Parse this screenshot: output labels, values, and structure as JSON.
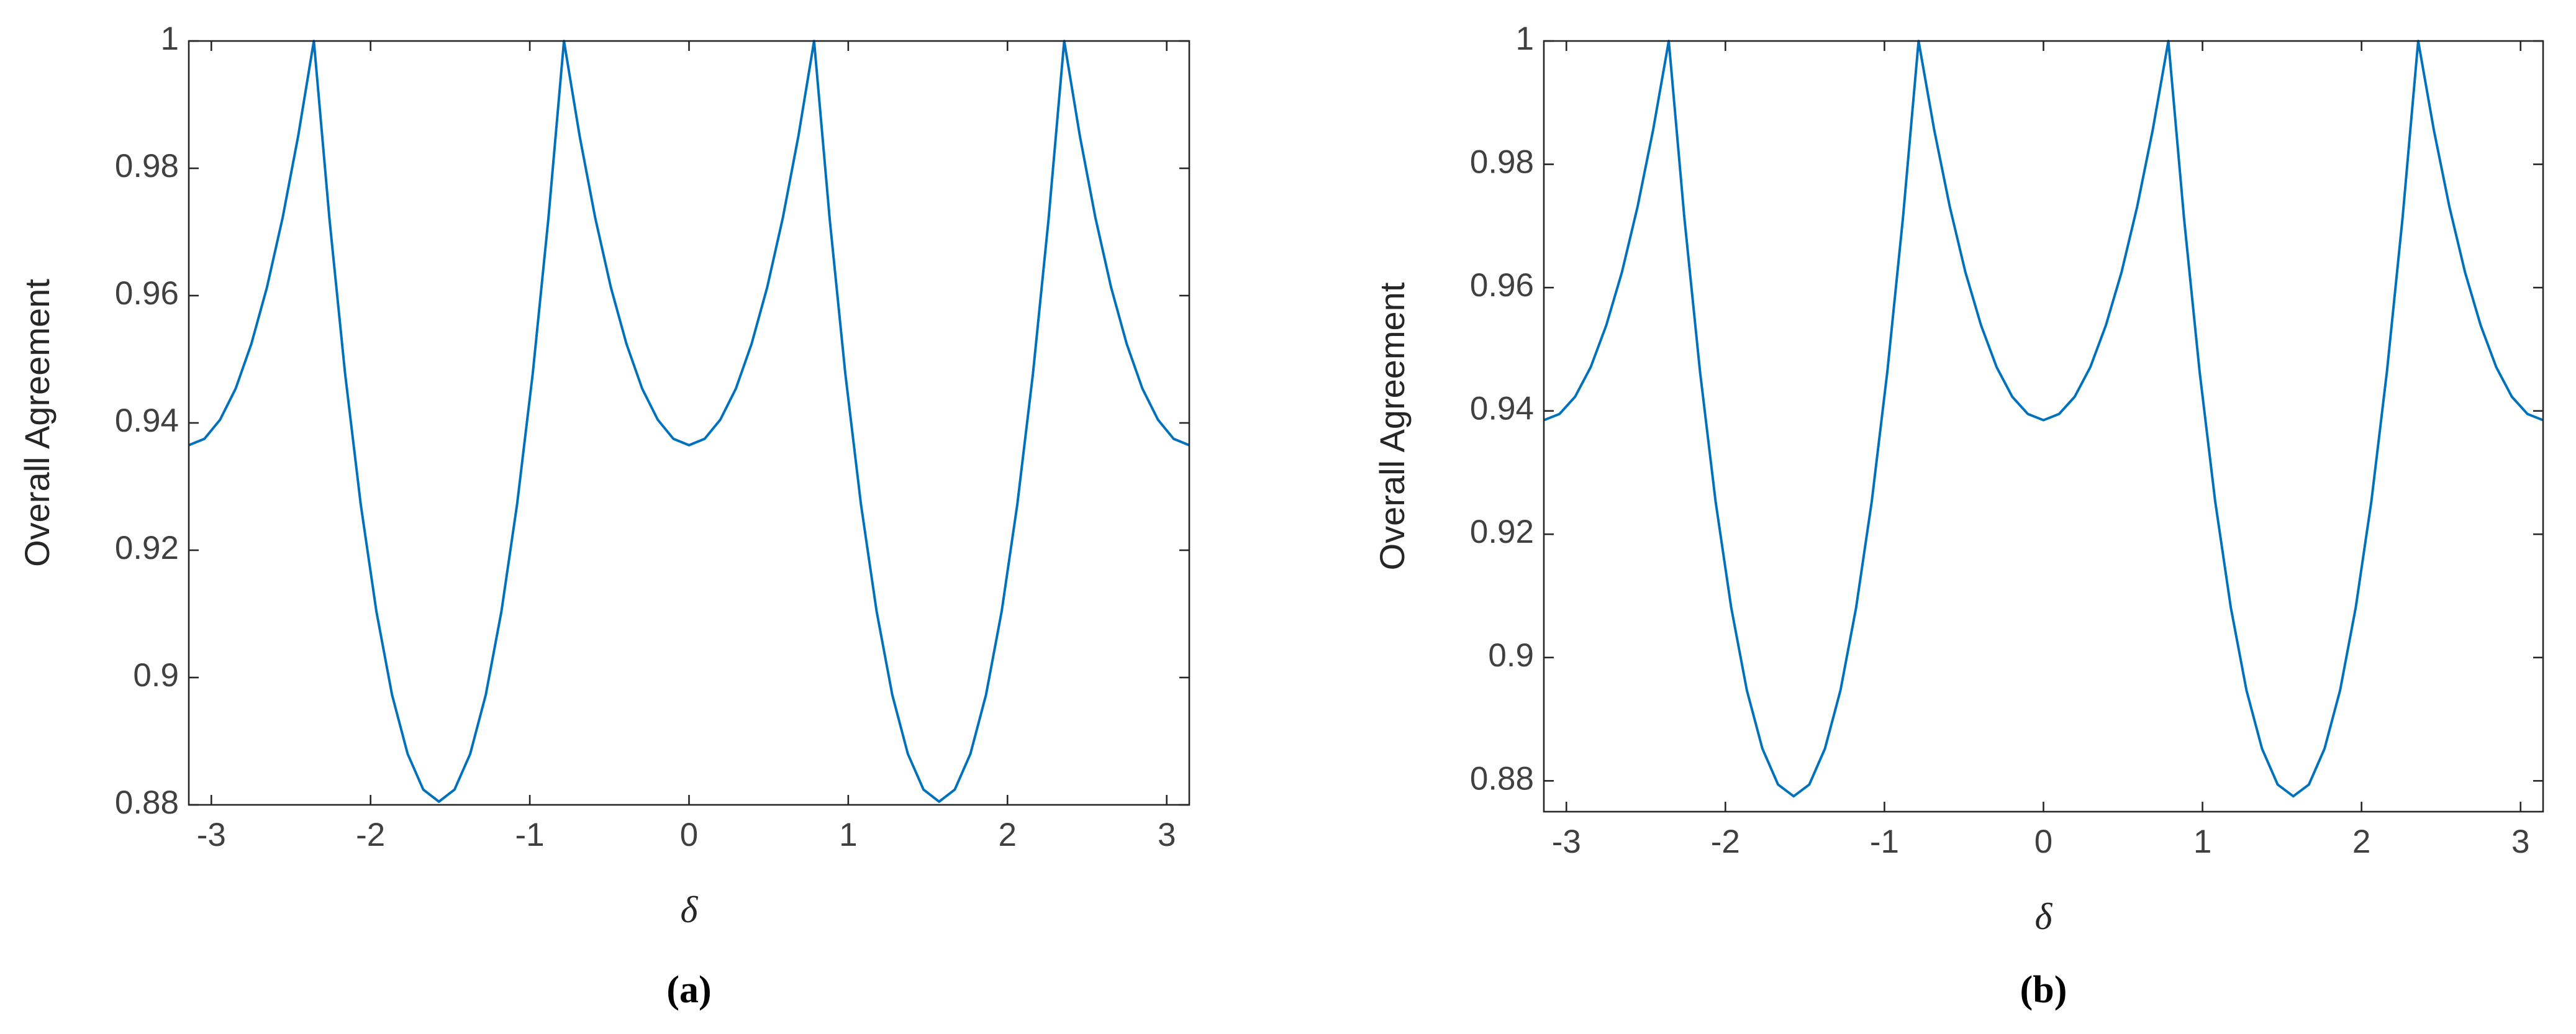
{
  "chart_data": [
    {
      "type": "line",
      "caption": "(a)",
      "xlabel": "δ",
      "ylabel": "Overall Agreement",
      "color": "#0072bd",
      "xlim": [
        -3.1416,
        3.1416
      ],
      "ylim": [
        0.88,
        1
      ],
      "xticks": [
        -3,
        -2,
        -1,
        0,
        1,
        2,
        3
      ],
      "yticks": [
        0.88,
        0.9,
        0.92,
        0.94,
        0.96,
        0.98,
        1
      ],
      "x": [
        -3.1416,
        -3.0434,
        -2.9452,
        -2.8471,
        -2.7489,
        -2.6507,
        -2.5525,
        -2.4544,
        -2.3562,
        -2.258,
        -2.1598,
        -2.0617,
        -1.9635,
        -1.8653,
        -1.7671,
        -1.669,
        -1.5708,
        -1.4726,
        -1.3744,
        -1.2763,
        -1.1781,
        -1.0799,
        -0.9817,
        -0.8836,
        -0.7854,
        -0.6872,
        -0.589,
        -0.4909,
        -0.3927,
        -0.2945,
        -0.1963,
        -0.0982,
        0,
        0.0982,
        0.1963,
        0.2945,
        0.3927,
        0.4909,
        0.589,
        0.6872,
        0.7854,
        0.8836,
        0.9817,
        1.0799,
        1.1781,
        1.2763,
        1.3744,
        1.4726,
        1.5708,
        1.669,
        1.7671,
        1.8653,
        1.9635,
        2.0617,
        2.1598,
        2.258,
        2.3562,
        2.4544,
        2.5525,
        2.6507,
        2.7489,
        2.8471,
        2.9452,
        3.0434,
        3.1416
      ],
      "values": [
        0.9365,
        0.9375,
        0.9405,
        0.9454,
        0.9524,
        0.9613,
        0.9722,
        0.9851,
        1,
        0.972,
        0.9477,
        0.9272,
        0.9104,
        0.8973,
        0.888,
        0.8824,
        0.8805,
        0.8824,
        0.888,
        0.8973,
        0.9104,
        0.9272,
        0.9477,
        0.972,
        1,
        0.9851,
        0.9722,
        0.9613,
        0.9524,
        0.9454,
        0.9405,
        0.9375,
        0.9365,
        0.9375,
        0.9405,
        0.9454,
        0.9524,
        0.9613,
        0.9722,
        0.9851,
        1,
        0.972,
        0.9477,
        0.9272,
        0.9104,
        0.8973,
        0.888,
        0.8824,
        0.8805,
        0.8824,
        0.888,
        0.8973,
        0.9104,
        0.9272,
        0.9477,
        0.972,
        1,
        0.9851,
        0.9722,
        0.9613,
        0.9524,
        0.9454,
        0.9405,
        0.9375,
        0.9365
      ]
    },
    {
      "type": "line",
      "caption": "(b)",
      "xlabel": "δ",
      "ylabel": "Overall Agreement",
      "color": "#0072bd",
      "xlim": [
        -3.1416,
        3.1416
      ],
      "ylim": [
        0.875,
        1
      ],
      "xticks": [
        -3,
        -2,
        -1,
        0,
        1,
        2,
        3
      ],
      "yticks": [
        0.88,
        0.9,
        0.92,
        0.94,
        0.96,
        0.98,
        1
      ],
      "x": [
        -3.1416,
        -3.0434,
        -2.9452,
        -2.8471,
        -2.7489,
        -2.6507,
        -2.5525,
        -2.4544,
        -2.3562,
        -2.258,
        -2.1598,
        -2.0617,
        -1.9635,
        -1.8653,
        -1.7671,
        -1.669,
        -1.5708,
        -1.4726,
        -1.3744,
        -1.2763,
        -1.1781,
        -1.0799,
        -0.9817,
        -0.8836,
        -0.7854,
        -0.6872,
        -0.589,
        -0.4909,
        -0.3927,
        -0.2945,
        -0.1963,
        -0.0982,
        0,
        0.0982,
        0.1963,
        0.2945,
        0.3927,
        0.4909,
        0.589,
        0.6872,
        0.7854,
        0.8836,
        0.9817,
        1.0799,
        1.1781,
        1.2763,
        1.3744,
        1.4726,
        1.5708,
        1.669,
        1.7671,
        1.8653,
        1.9635,
        2.0617,
        2.1598,
        2.258,
        2.3562,
        2.4544,
        2.5525,
        2.6507,
        2.7489,
        2.8471,
        2.9452,
        3.0434,
        3.1416
      ],
      "values": [
        0.9385,
        0.9395,
        0.9423,
        0.9471,
        0.9539,
        0.9625,
        0.9731,
        0.9856,
        1,
        0.9713,
        0.9464,
        0.9253,
        0.9081,
        0.8947,
        0.8852,
        0.8794,
        0.8775,
        0.8794,
        0.8852,
        0.8947,
        0.9081,
        0.9253,
        0.9464,
        0.9713,
        1,
        0.9856,
        0.9731,
        0.9625,
        0.9539,
        0.9471,
        0.9423,
        0.9395,
        0.9385,
        0.9395,
        0.9423,
        0.9471,
        0.9539,
        0.9625,
        0.9731,
        0.9856,
        1,
        0.9713,
        0.9464,
        0.9253,
        0.9081,
        0.8947,
        0.8852,
        0.8794,
        0.8775,
        0.8794,
        0.8852,
        0.8947,
        0.9081,
        0.9253,
        0.9464,
        0.9713,
        1,
        0.9856,
        0.9731,
        0.9625,
        0.9539,
        0.9471,
        0.9423,
        0.9395,
        0.9385
      ]
    }
  ]
}
